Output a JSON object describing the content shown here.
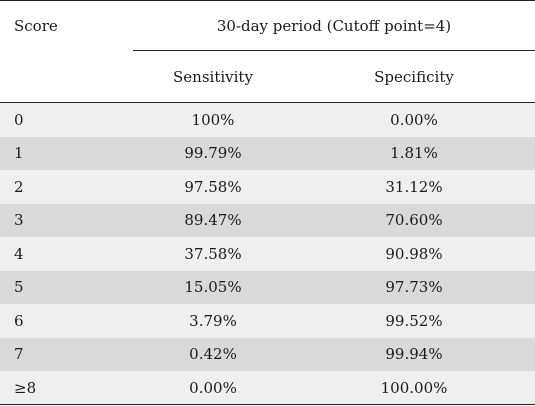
{
  "header": {
    "score_label": "Score",
    "group_label": "30-day period (Cutoff point=4)",
    "sensitivity_label": "Sensitivity",
    "specificity_label": "Specificity"
  },
  "rows": [
    {
      "score": "0",
      "sensitivity": "100%",
      "specificity": "0.00%"
    },
    {
      "score": "1",
      "sensitivity": "99.79%",
      "specificity": "1.81%"
    },
    {
      "score": "2",
      "sensitivity": "97.58%",
      "specificity": "31.12%"
    },
    {
      "score": "3",
      "sensitivity": "89.47%",
      "specificity": "70.60%"
    },
    {
      "score": "4",
      "sensitivity": "37.58%",
      "specificity": "90.98%"
    },
    {
      "score": "5",
      "sensitivity": "15.05%",
      "specificity": "97.73%"
    },
    {
      "score": "6",
      "sensitivity": "3.79%",
      "specificity": "99.52%"
    },
    {
      "score": "7",
      "sensitivity": "0.42%",
      "specificity": "99.94%"
    },
    {
      "score": "≥8",
      "sensitivity": "0.00%",
      "specificity": "100.00%"
    }
  ]
}
